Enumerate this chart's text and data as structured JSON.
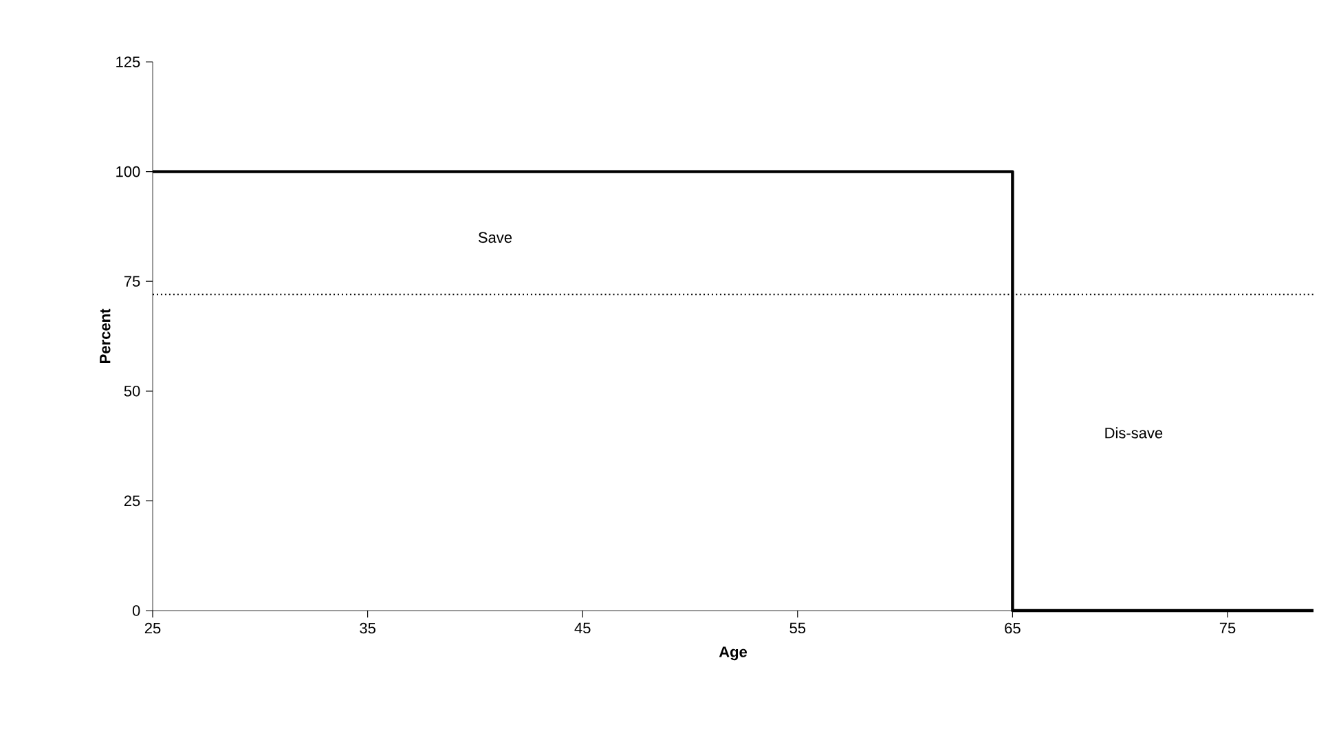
{
  "chart_data": {
    "type": "line",
    "xlabel": "Age",
    "ylabel": "Percent",
    "series": [
      {
        "color": "#000000",
        "x": [
          25,
          65,
          65,
          79
        ],
        "values": [
          100,
          100,
          0,
          0
        ]
      }
    ],
    "xlim": [
      25,
      79
    ],
    "xticks": [
      25,
      35,
      45,
      55,
      65,
      75
    ],
    "ylim": [
      0,
      125
    ],
    "yticks": [
      0,
      25,
      50,
      75,
      100,
      125
    ],
    "ref_lines": [
      {
        "axis": "y",
        "value": 72,
        "line_style": "dotted",
        "color": "#000000"
      }
    ],
    "annotations": [
      "Save",
      "Dis-save"
    ],
    "marker": "none",
    "line_style": "solid"
  }
}
